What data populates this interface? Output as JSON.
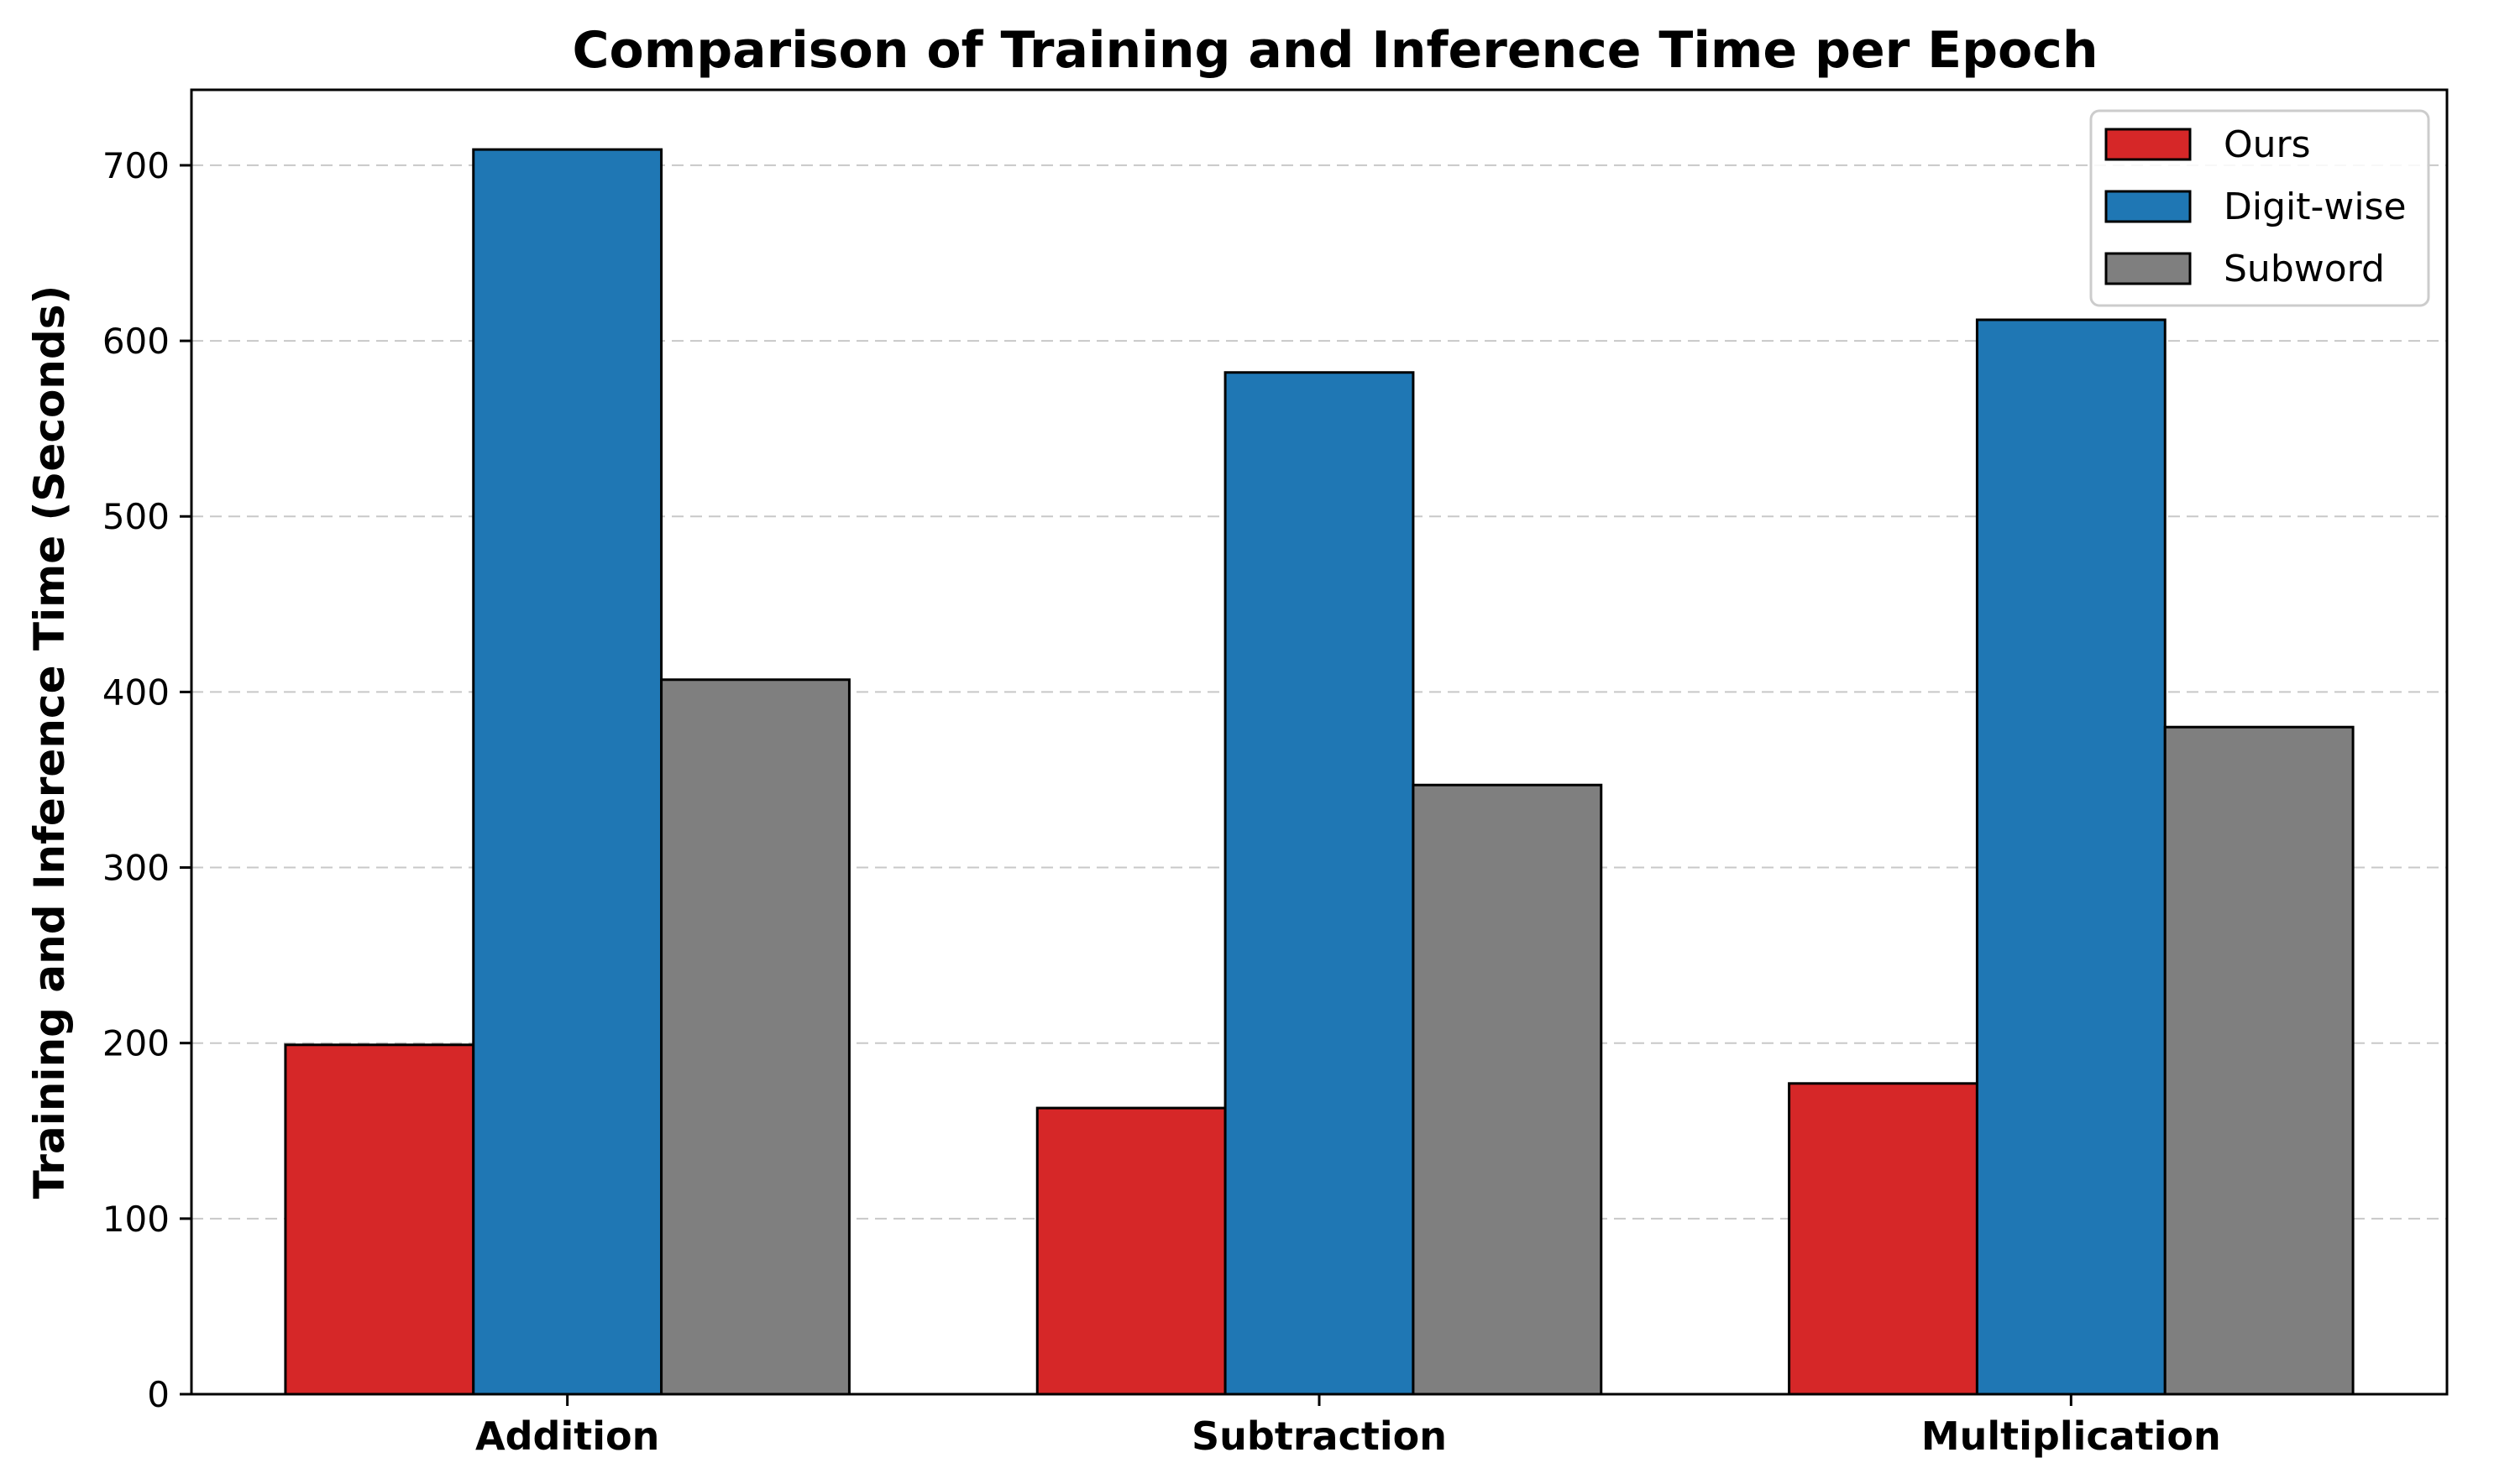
{
  "chart_data": {
    "type": "bar",
    "title": "Comparison of Training and Inference Time per Epoch",
    "xlabel": "",
    "ylabel": "Training and Inference Time (Seconds)",
    "categories": [
      "Addition",
      "Subtraction",
      "Multiplication"
    ],
    "series": [
      {
        "name": "Ours",
        "values": [
          199,
          163,
          177
        ],
        "color": "#d62728"
      },
      {
        "name": "Digit-wise",
        "values": [
          709,
          582,
          612
        ],
        "color": "#1f77b4"
      },
      {
        "name": "Subword",
        "values": [
          407,
          347,
          380
        ],
        "color": "#7f7f7f"
      }
    ],
    "ylim": [
      0,
      743
    ],
    "yticks": [
      0,
      100,
      200,
      300,
      400,
      500,
      600,
      700
    ],
    "ytick_labels": [
      "0",
      "100",
      "200",
      "300",
      "400",
      "500",
      "600",
      "700"
    ],
    "grid": "horizontal dashed",
    "legend_position": "top-right"
  }
}
